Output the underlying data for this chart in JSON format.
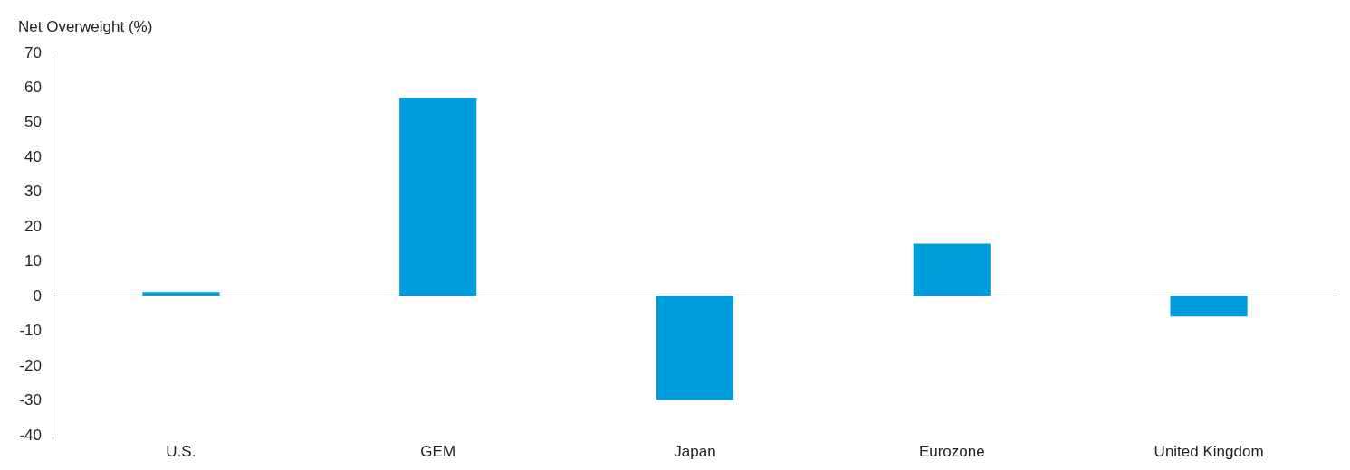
{
  "chart_data": {
    "type": "bar",
    "ylabel": "Net Overweight (%)",
    "categories": [
      "U.S.",
      "GEM",
      "Japan",
      "Eurozone",
      "United Kingdom"
    ],
    "values": [
      1,
      57,
      -30,
      15,
      -6
    ],
    "color": "#009ddc",
    "ylim": [
      -40,
      70
    ],
    "yticks": [
      -40,
      -30,
      -20,
      -10,
      0,
      10,
      20,
      30,
      40,
      50,
      60,
      70
    ]
  }
}
